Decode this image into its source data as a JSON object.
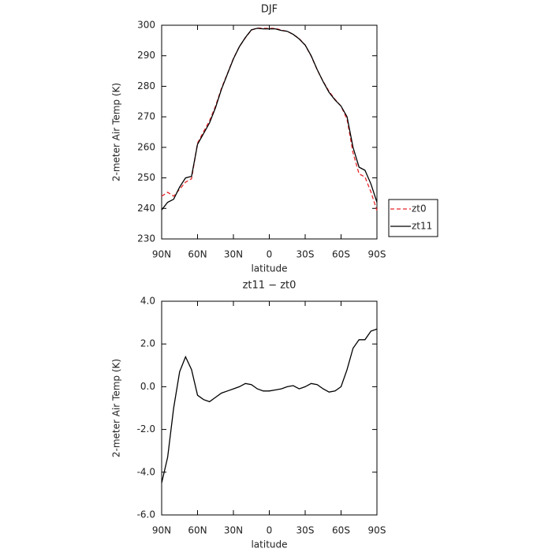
{
  "chart_data": [
    {
      "type": "line",
      "title": "DJF",
      "y_label": "2-meter Air Temp (K)",
      "x_label": "latitude",
      "x": [
        90,
        85,
        80,
        75,
        70,
        65,
        60,
        55,
        50,
        45,
        40,
        35,
        30,
        25,
        20,
        15,
        10,
        5,
        0,
        -5,
        -10,
        -15,
        -20,
        -25,
        -30,
        -35,
        -40,
        -45,
        -50,
        -55,
        -60,
        -65,
        -70,
        -75,
        -80,
        -85,
        -90
      ],
      "xlim": [
        90,
        -90
      ],
      "xticks": [
        {
          "value": 90,
          "label": "90N"
        },
        {
          "value": 60,
          "label": "60N"
        },
        {
          "value": 30,
          "label": "30N"
        },
        0,
        {
          "value": -30,
          "label": "30S"
        },
        {
          "value": -60,
          "label": "60S"
        },
        {
          "value": -90,
          "label": "90S"
        }
      ],
      "ylim": [
        230,
        300
      ],
      "yticks": [
        230,
        240,
        250,
        260,
        270,
        280,
        290,
        300
      ],
      "legend": "right",
      "series": [
        {
          "name": "zt0",
          "color": "#e8262a",
          "dashed": true,
          "values": [
            244.0,
            245.3,
            244.0,
            246.3,
            248.6,
            249.7,
            261.4,
            265.1,
            268.7,
            273.5,
            279.3,
            284.2,
            289.1,
            293.0,
            295.9,
            298.4,
            299.1,
            299.0,
            299.0,
            299.0,
            298.4,
            298.0,
            297.0,
            295.6,
            293.5,
            289.9,
            285.4,
            281.6,
            278.3,
            275.7,
            273.5,
            269.2,
            258.2,
            251.3,
            250.3,
            245.4,
            239.3
          ]
        },
        {
          "name": "zt11",
          "color": "#000000",
          "dashed": false,
          "values": [
            239.5,
            242.0,
            243.0,
            247.0,
            250.0,
            250.5,
            261.0,
            264.5,
            268.0,
            273.0,
            279.0,
            284.0,
            289.0,
            293.0,
            296.0,
            298.5,
            299.0,
            298.8,
            298.8,
            298.8,
            298.3,
            298.0,
            297.0,
            295.5,
            293.5,
            290.0,
            285.5,
            281.5,
            278.0,
            275.5,
            273.5,
            270.0,
            260.0,
            253.5,
            252.5,
            248.0,
            242.0
          ]
        }
      ]
    },
    {
      "type": "line",
      "title": "zt11 − zt0",
      "y_label": "2-meter Air Temp (K)",
      "x_label": "latitude",
      "x": [
        90,
        85,
        80,
        75,
        70,
        65,
        60,
        55,
        50,
        45,
        40,
        35,
        30,
        25,
        20,
        15,
        10,
        5,
        0,
        -5,
        -10,
        -15,
        -20,
        -25,
        -30,
        -35,
        -40,
        -45,
        -50,
        -55,
        -60,
        -65,
        -70,
        -75,
        -80,
        -85,
        -90
      ],
      "xlim": [
        90,
        -90
      ],
      "xticks": [
        {
          "value": 90,
          "label": "90N"
        },
        {
          "value": 60,
          "label": "60N"
        },
        {
          "value": 30,
          "label": "30N"
        },
        0,
        {
          "value": -30,
          "label": "30S"
        },
        {
          "value": -60,
          "label": "60S"
        },
        {
          "value": -90,
          "label": "90S"
        }
      ],
      "ylim": [
        -6,
        4
      ],
      "yticks": [
        {
          "value": -6,
          "label": "-6.0"
        },
        {
          "value": -4,
          "label": "-4.0"
        },
        {
          "value": -2,
          "label": "-2.0"
        },
        {
          "value": 0,
          "label": "0.0"
        },
        {
          "value": 2,
          "label": "2.0"
        },
        {
          "value": 4,
          "label": "4.0"
        }
      ],
      "series": [
        {
          "color": "#000000",
          "dashed": false,
          "values": [
            -4.5,
            -3.3,
            -1.0,
            0.7,
            1.4,
            0.8,
            -0.4,
            -0.6,
            -0.7,
            -0.5,
            -0.3,
            -0.2,
            -0.1,
            0.0,
            0.15,
            0.1,
            -0.1,
            -0.2,
            -0.2,
            -0.15,
            -0.1,
            0.0,
            0.05,
            -0.1,
            0.0,
            0.15,
            0.1,
            -0.1,
            -0.25,
            -0.2,
            0.0,
            0.8,
            1.8,
            2.2,
            2.2,
            2.6,
            2.7
          ]
        }
      ]
    }
  ]
}
